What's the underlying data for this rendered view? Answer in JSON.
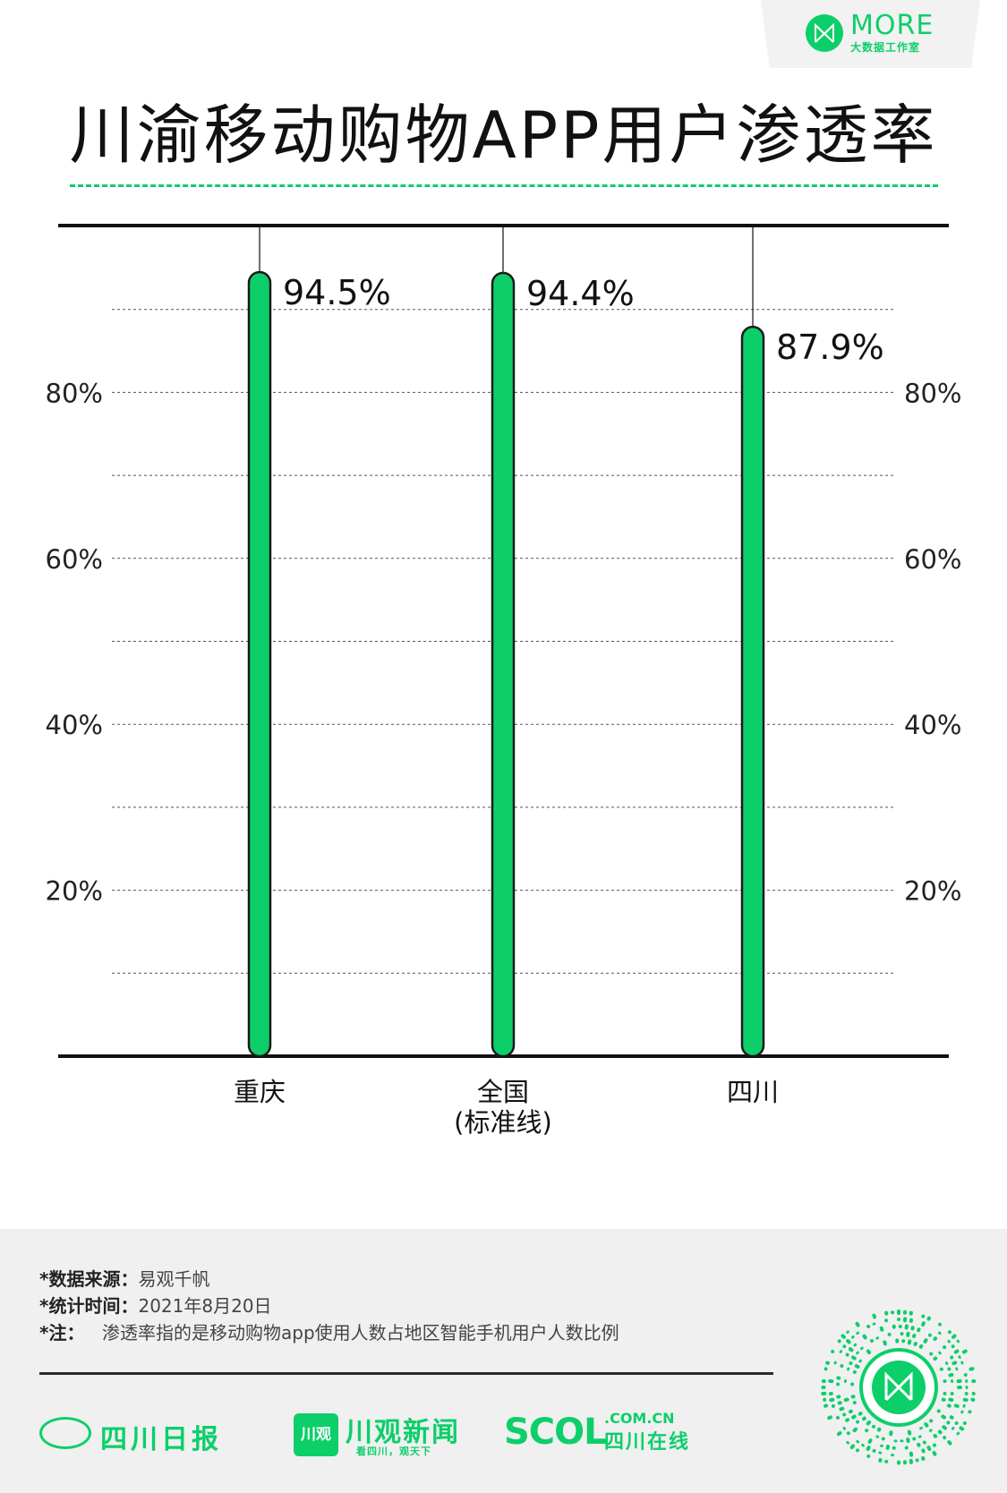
{
  "brand": {
    "name": "MORE",
    "subtitle": "大数据工作室",
    "accent": "#0ccf6a"
  },
  "title": "川渝移动购物APP用户渗透率",
  "chart_data": {
    "type": "bar",
    "title": "川渝移动购物APP用户渗透率",
    "categories": [
      "重庆",
      "全国\n(标准线)",
      "四川"
    ],
    "values": [
      94.5,
      94.4,
      87.9
    ],
    "value_labels": [
      "94.5%",
      "94.4%",
      "87.9%"
    ],
    "y_ticks": [
      "20%",
      "40%",
      "60%",
      "80%"
    ],
    "y_tick_values": [
      20,
      40,
      60,
      80
    ],
    "ylim": [
      0,
      100
    ],
    "grid": true,
    "grid_style": "dashed",
    "axis_labels_both_sides": true,
    "bar_color": "#0ccf6a",
    "bar_outline": "#1a1a1a"
  },
  "notes": [
    {
      "key": "*数据来源：",
      "value": "易观千帆"
    },
    {
      "key": "*统计时间：",
      "value": "2021年8月20日"
    },
    {
      "key": "*注：",
      "value": "渗透率指的是移动购物app使用人数占地区智能手机用户人数比例"
    }
  ],
  "partners": {
    "p1": "四川日报",
    "p2_mark": "川观",
    "p2_name": "川观新闻",
    "p2_slogan": "看四川，观天下",
    "p3_big": "SCOL",
    "p3_domain": ".COM.CN",
    "p3_cn": "四川在线"
  }
}
